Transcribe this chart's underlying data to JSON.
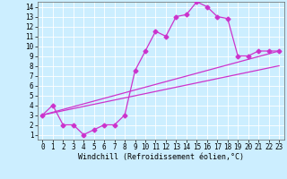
{
  "xlabel": "Windchill (Refroidissement éolien,°C)",
  "bg_color": "#cceeff",
  "line_color": "#cc33cc",
  "xlim": [
    -0.5,
    23.5
  ],
  "ylim": [
    0.5,
    14.5
  ],
  "xticks": [
    0,
    1,
    2,
    3,
    4,
    5,
    6,
    7,
    8,
    9,
    10,
    11,
    12,
    13,
    14,
    15,
    16,
    17,
    18,
    19,
    20,
    21,
    22,
    23
  ],
  "yticks": [
    1,
    2,
    3,
    4,
    5,
    6,
    7,
    8,
    9,
    10,
    11,
    12,
    13,
    14
  ],
  "grid_color": "#ffffff",
  "line1_x": [
    0,
    1,
    2,
    3,
    4,
    5,
    6,
    7,
    8,
    9,
    10,
    11,
    12,
    13,
    14,
    15,
    16,
    17,
    18,
    19,
    20,
    21,
    22,
    23
  ],
  "line1_y": [
    3,
    4,
    2,
    2,
    1,
    1.5,
    2,
    2,
    3,
    7.5,
    9.5,
    11.5,
    11,
    13,
    13.2,
    14.5,
    14,
    13,
    12.8,
    9,
    9,
    9.5,
    9.5,
    9.5
  ],
  "line2_x": [
    0,
    23
  ],
  "line2_y": [
    3,
    9.5
  ],
  "line3_x": [
    0,
    23
  ],
  "line3_y": [
    3,
    8.0
  ],
  "marker": "D",
  "markersize": 2.5,
  "linewidth": 0.9,
  "fontsize_tick": 5.5,
  "fontsize_label": 6.0
}
